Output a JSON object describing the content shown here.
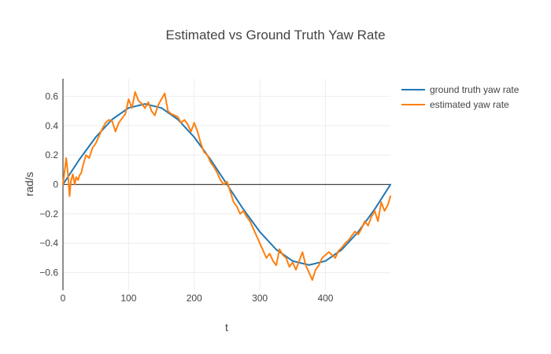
{
  "chart_data": {
    "type": "line",
    "title": "Estimated vs Ground Truth Yaw Rate",
    "xlabel": "t",
    "ylabel": "rad/s",
    "xlim": [
      0,
      499
    ],
    "ylim": [
      -0.72,
      0.72
    ],
    "x_ticks": [
      0,
      100,
      200,
      300,
      400
    ],
    "y_ticks": [
      -0.6,
      -0.4,
      -0.2,
      0,
      0.2,
      0.4,
      0.6
    ],
    "grid": true,
    "legend_position": "top-right",
    "colors": {
      "ground_truth": "#1f77b4",
      "estimated": "#ff7f0e",
      "zero_line": "#444444",
      "grid": "#eeeeee"
    },
    "series": [
      {
        "name": "ground truth yaw rate",
        "x": [
          0,
          25,
          50,
          75,
          100,
          125,
          150,
          175,
          200,
          225,
          250,
          275,
          300,
          325,
          350,
          375,
          400,
          425,
          450,
          475,
          499
        ],
        "values": [
          0.0,
          0.17,
          0.322,
          0.443,
          0.521,
          0.548,
          0.521,
          0.443,
          0.322,
          0.169,
          0.0,
          -0.17,
          -0.322,
          -0.443,
          -0.521,
          -0.548,
          -0.521,
          -0.443,
          -0.322,
          -0.169,
          -0.001
        ]
      },
      {
        "name": "estimated yaw rate",
        "x": [
          0,
          5,
          8,
          10,
          12,
          15,
          18,
          20,
          23,
          25,
          28,
          30,
          35,
          40,
          45,
          50,
          55,
          60,
          65,
          70,
          75,
          80,
          85,
          90,
          95,
          100,
          105,
          110,
          115,
          120,
          125,
          130,
          135,
          140,
          145,
          150,
          155,
          160,
          165,
          170,
          175,
          180,
          185,
          190,
          195,
          200,
          205,
          210,
          215,
          220,
          225,
          230,
          235,
          240,
          245,
          250,
          255,
          260,
          265,
          270,
          275,
          280,
          285,
          290,
          295,
          300,
          305,
          310,
          315,
          320,
          325,
          330,
          335,
          340,
          345,
          350,
          355,
          360,
          365,
          370,
          375,
          380,
          385,
          390,
          395,
          400,
          405,
          410,
          415,
          420,
          425,
          430,
          435,
          440,
          445,
          450,
          455,
          460,
          465,
          470,
          475,
          480,
          485,
          490,
          495,
          499
        ],
        "values": [
          0.0,
          0.18,
          0.05,
          -0.08,
          0.02,
          0.07,
          0.0,
          0.05,
          0.03,
          0.06,
          0.08,
          0.12,
          0.2,
          0.18,
          0.25,
          0.28,
          0.33,
          0.38,
          0.42,
          0.44,
          0.43,
          0.36,
          0.42,
          0.45,
          0.48,
          0.58,
          0.52,
          0.63,
          0.57,
          0.55,
          0.52,
          0.56,
          0.5,
          0.47,
          0.54,
          0.58,
          0.62,
          0.5,
          0.48,
          0.47,
          0.46,
          0.42,
          0.44,
          0.41,
          0.36,
          0.42,
          0.36,
          0.28,
          0.22,
          0.2,
          0.15,
          0.12,
          0.08,
          0.03,
          0.0,
          0.02,
          -0.05,
          -0.12,
          -0.15,
          -0.2,
          -0.18,
          -0.22,
          -0.25,
          -0.3,
          -0.35,
          -0.4,
          -0.45,
          -0.5,
          -0.47,
          -0.52,
          -0.55,
          -0.44,
          -0.48,
          -0.5,
          -0.56,
          -0.53,
          -0.58,
          -0.52,
          -0.46,
          -0.55,
          -0.6,
          -0.65,
          -0.58,
          -0.55,
          -0.5,
          -0.48,
          -0.46,
          -0.48,
          -0.5,
          -0.45,
          -0.43,
          -0.4,
          -0.38,
          -0.35,
          -0.32,
          -0.34,
          -0.3,
          -0.25,
          -0.28,
          -0.22,
          -0.18,
          -0.25,
          -0.12,
          -0.18,
          -0.14,
          -0.08
        ]
      }
    ]
  }
}
